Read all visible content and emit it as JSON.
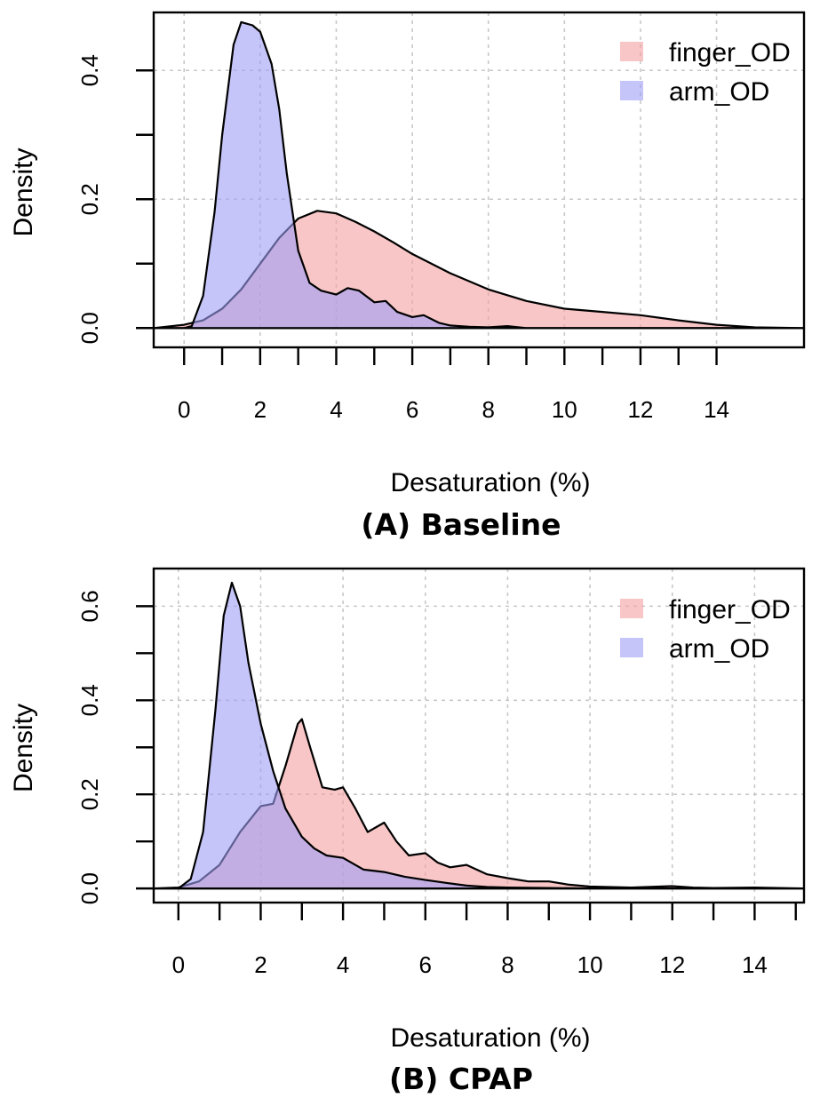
{
  "chart_data": [
    {
      "type": "area",
      "caption": "(A) Baseline",
      "xlabel": "Desaturation (%)",
      "ylabel": "Density",
      "xlim": [
        -0.8,
        16.3
      ],
      "ylim": [
        -0.03,
        0.49
      ],
      "xticks": [
        0,
        1,
        2,
        3,
        4,
        5,
        6,
        7,
        8,
        9,
        10,
        11,
        12,
        13,
        14
      ],
      "xtick_labels": [
        "0",
        "2",
        "4",
        "6",
        "8",
        "10",
        "12",
        "14"
      ],
      "xtick_label_values": [
        0,
        2,
        4,
        6,
        8,
        10,
        12,
        14
      ],
      "yticks": [
        0.0,
        0.1,
        0.2,
        0.3,
        0.4
      ],
      "ytick_labels": [
        "0.0",
        "0.2",
        "0.4"
      ],
      "ytick_label_values": [
        0.0,
        0.2,
        0.4
      ],
      "grid": true,
      "legend_position": "top-right",
      "series": [
        {
          "name": "finger_OD",
          "color": "#f4a0a0",
          "x": [
            -0.8,
            0.0,
            0.5,
            1.0,
            1.5,
            2.0,
            2.5,
            3.0,
            3.5,
            4.0,
            4.5,
            5.0,
            5.5,
            6.0,
            7.0,
            8.0,
            9.0,
            10.0,
            11.0,
            12.0,
            13.0,
            14.0,
            15.0,
            16.3
          ],
          "y": [
            0.0,
            0.005,
            0.012,
            0.03,
            0.06,
            0.1,
            0.14,
            0.17,
            0.182,
            0.178,
            0.165,
            0.15,
            0.133,
            0.115,
            0.085,
            0.06,
            0.042,
            0.03,
            0.025,
            0.02,
            0.012,
            0.005,
            0.001,
            0.0
          ]
        },
        {
          "name": "arm_OD",
          "color": "#9f9ff5",
          "x": [
            -0.8,
            0.0,
            0.2,
            0.5,
            0.8,
            1.0,
            1.3,
            1.5,
            1.8,
            2.0,
            2.3,
            2.5,
            2.7,
            3.0,
            3.3,
            3.6,
            4.0,
            4.3,
            4.6,
            5.0,
            5.3,
            5.6,
            6.0,
            6.3,
            6.7,
            7.0,
            7.5,
            8.0,
            8.5,
            9.0,
            10.0,
            16.3
          ],
          "y": [
            0.0,
            0.0,
            0.003,
            0.05,
            0.18,
            0.3,
            0.44,
            0.475,
            0.47,
            0.46,
            0.41,
            0.34,
            0.24,
            0.12,
            0.07,
            0.058,
            0.052,
            0.062,
            0.058,
            0.04,
            0.042,
            0.025,
            0.017,
            0.02,
            0.008,
            0.004,
            0.002,
            0.001,
            0.003,
            0.0,
            0.0,
            0.0
          ]
        }
      ]
    },
    {
      "type": "area",
      "caption": "(B) CPAP",
      "xlabel": "Desaturation (%)",
      "ylabel": "Density",
      "xlim": [
        -0.6,
        15.2
      ],
      "ylim": [
        -0.03,
        0.68
      ],
      "xticks": [
        0,
        1,
        2,
        3,
        4,
        5,
        6,
        7,
        8,
        9,
        10,
        11,
        12,
        13,
        14,
        15
      ],
      "xtick_labels": [
        "0",
        "2",
        "4",
        "6",
        "8",
        "10",
        "12",
        "14"
      ],
      "xtick_label_values": [
        0,
        2,
        4,
        6,
        8,
        10,
        12,
        14
      ],
      "yticks": [
        0.0,
        0.1,
        0.2,
        0.3,
        0.4,
        0.5,
        0.6
      ],
      "ytick_labels": [
        "0.0",
        "0.2",
        "0.4",
        "0.6"
      ],
      "ytick_label_values": [
        0.0,
        0.2,
        0.4,
        0.6
      ],
      "grid": true,
      "legend_position": "top-right",
      "series": [
        {
          "name": "finger_OD",
          "color": "#f4a0a0",
          "x": [
            -0.6,
            0.0,
            0.5,
            1.0,
            1.5,
            2.0,
            2.3,
            2.6,
            2.9,
            3.0,
            3.2,
            3.5,
            3.8,
            4.0,
            4.3,
            4.6,
            5.0,
            5.3,
            5.6,
            6.0,
            6.3,
            6.6,
            7.0,
            7.5,
            8.0,
            8.5,
            9.0,
            9.5,
            10.0,
            11.0,
            12.0,
            12.5,
            13.0,
            14.0,
            15.2
          ],
          "y": [
            0.0,
            0.002,
            0.015,
            0.05,
            0.12,
            0.175,
            0.18,
            0.26,
            0.35,
            0.36,
            0.3,
            0.215,
            0.21,
            0.215,
            0.17,
            0.12,
            0.14,
            0.1,
            0.07,
            0.075,
            0.055,
            0.045,
            0.05,
            0.03,
            0.022,
            0.015,
            0.015,
            0.008,
            0.004,
            0.002,
            0.005,
            0.002,
            0.001,
            0.002,
            0.0
          ]
        },
        {
          "name": "arm_OD",
          "color": "#9f9ff5",
          "x": [
            -0.6,
            0.0,
            0.3,
            0.6,
            0.9,
            1.1,
            1.3,
            1.5,
            1.7,
            2.0,
            2.3,
            2.6,
            3.0,
            3.3,
            3.6,
            4.0,
            4.5,
            5.0,
            5.5,
            6.0,
            6.5,
            7.0,
            7.5,
            8.0,
            9.0,
            10.0,
            12.0,
            15.2
          ],
          "y": [
            0.0,
            0.0,
            0.02,
            0.12,
            0.38,
            0.58,
            0.65,
            0.6,
            0.48,
            0.35,
            0.25,
            0.17,
            0.11,
            0.085,
            0.07,
            0.065,
            0.04,
            0.035,
            0.025,
            0.018,
            0.012,
            0.006,
            0.003,
            0.002,
            0.001,
            0.0,
            0.0,
            0.0
          ]
        }
      ]
    }
  ]
}
